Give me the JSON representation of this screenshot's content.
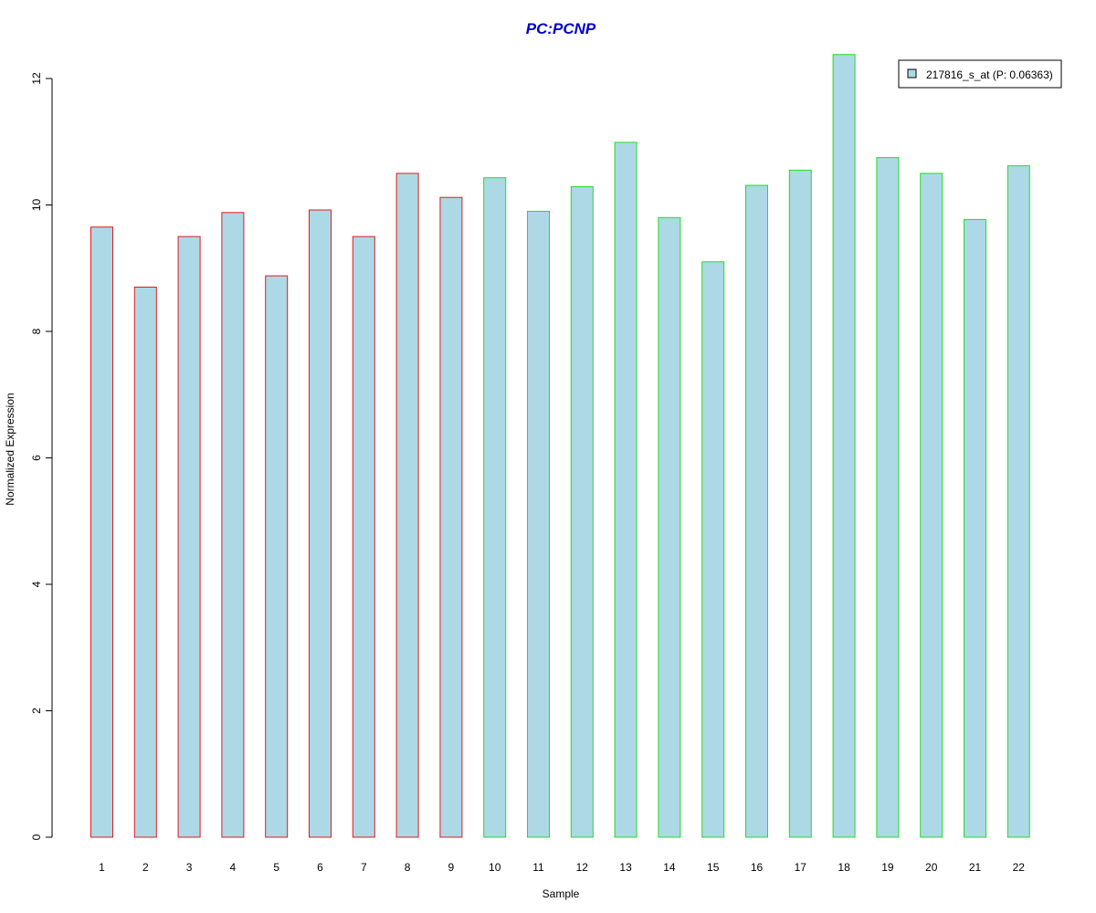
{
  "chart_data": {
    "type": "bar",
    "title": "PC:PCNP",
    "xlabel": "Sample",
    "ylabel": "Normalized Expression",
    "categories": [
      "1",
      "2",
      "3",
      "4",
      "5",
      "6",
      "7",
      "8",
      "9",
      "10",
      "11",
      "12",
      "13",
      "14",
      "15",
      "16",
      "17",
      "18",
      "19",
      "20",
      "21",
      "22"
    ],
    "series": [
      {
        "name": "217816_s_at (P: 0.06363)",
        "values": [
          9.65,
          8.7,
          9.5,
          9.88,
          8.88,
          9.92,
          9.5,
          10.5,
          10.12,
          10.43,
          9.9,
          10.29,
          10.99,
          9.8,
          9.1,
          10.31,
          10.55,
          12.38,
          10.75,
          10.5,
          9.77,
          10.62
        ]
      }
    ],
    "group_outline_colors": [
      "#e31a1c",
      "#e31a1c",
      "#e31a1c",
      "#e31a1c",
      "#e31a1c",
      "#e31a1c",
      "#e31a1c",
      "#e31a1c",
      "#e31a1c",
      "#22dd22",
      "#22dd22",
      "#22dd22",
      "#22dd22",
      "#22dd22",
      "#22dd22",
      "#22dd22",
      "#22dd22",
      "#22dd22",
      "#22dd22",
      "#22dd22",
      "#22dd22",
      "#22dd22"
    ],
    "fill_color": "#add8e6",
    "title_color": "#0000cd",
    "ylim": [
      0,
      12.45
    ],
    "yticks": [
      0,
      2,
      4,
      6,
      8,
      10,
      12
    ],
    "grid": false,
    "legend_position": "top-right"
  }
}
